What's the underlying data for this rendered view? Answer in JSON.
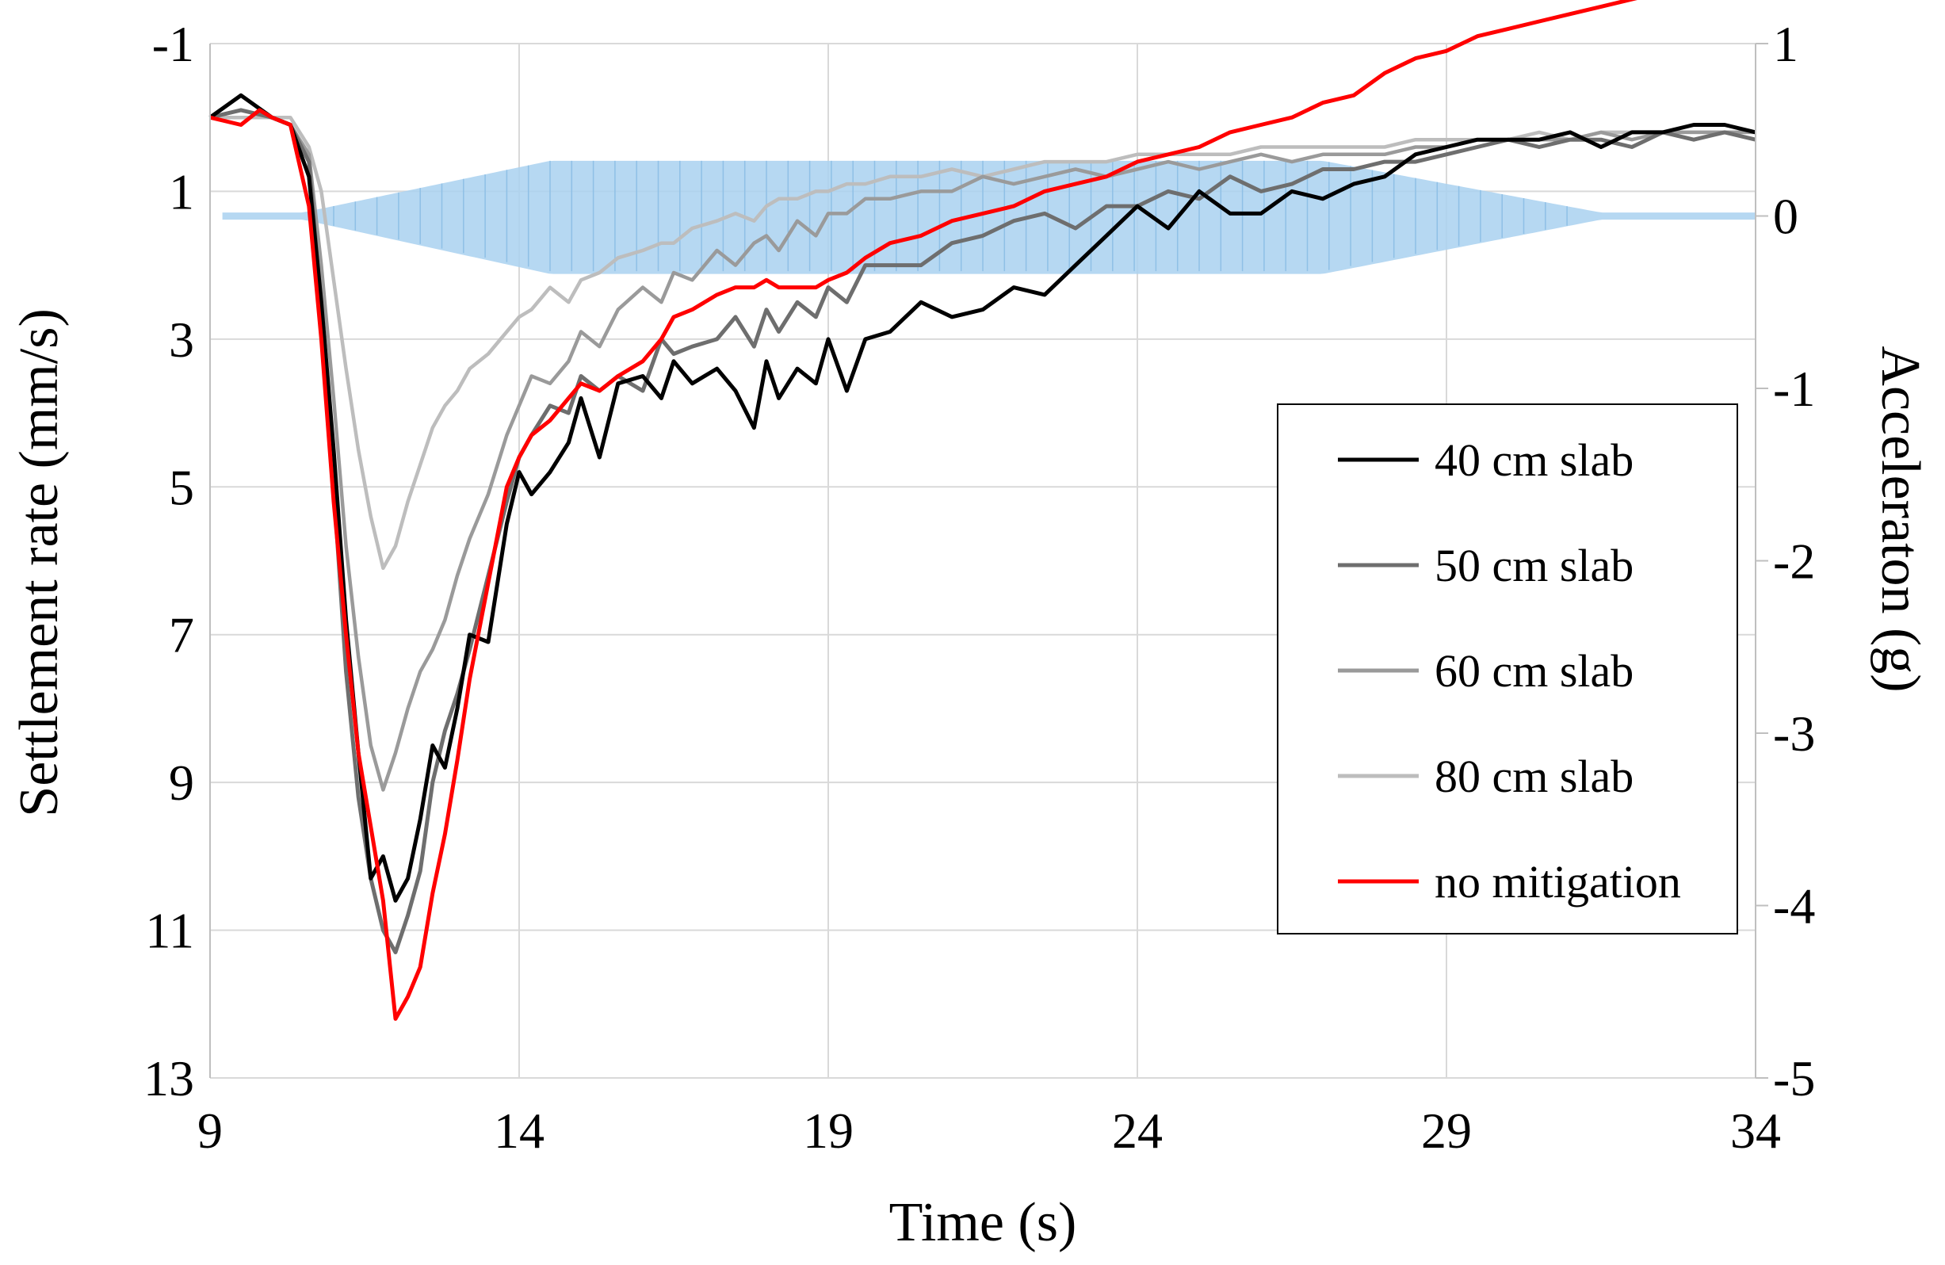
{
  "chart_data": {
    "type": "line",
    "xlabel": "Time (s)",
    "ylabel": "Settlement rate (mm/s)",
    "y2label": "Acceleraton (g)",
    "xlim": [
      9,
      34
    ],
    "ylim": [
      -1,
      13
    ],
    "y_inverted": true,
    "y2lim": [
      -5,
      1
    ],
    "x_ticks": [
      9,
      14,
      19,
      24,
      29,
      34
    ],
    "y_ticks": [
      -1,
      1,
      3,
      5,
      7,
      9,
      11,
      13
    ],
    "y2_ticks": [
      1,
      0,
      -1,
      -2,
      -3,
      -4,
      -5
    ],
    "grid": true,
    "legend_position": "right",
    "colors": {
      "acceleration": "#a9d1f0",
      "s40": "#000000",
      "s50": "#6e6e6e",
      "s60": "#9a9a9a",
      "s80": "#bdbdbd",
      "nomit": "#ff0000"
    },
    "series": [
      {
        "name": "40 cm slab",
        "key": "s40",
        "x": [
          9,
          9.5,
          10,
          10.3,
          10.6,
          10.8,
          11,
          11.2,
          11.4,
          11.6,
          11.8,
          12,
          12.2,
          12.4,
          12.6,
          12.8,
          13,
          13.2,
          13.5,
          13.8,
          14,
          14.2,
          14.5,
          14.8,
          15,
          15.3,
          15.6,
          16,
          16.3,
          16.5,
          16.8,
          17.2,
          17.5,
          17.8,
          18,
          18.2,
          18.5,
          18.8,
          19,
          19.3,
          19.6,
          20,
          20.5,
          21,
          21.5,
          22,
          22.5,
          23,
          23.5,
          24,
          24.5,
          25,
          25.5,
          26,
          26.5,
          27,
          27.5,
          28,
          28.5,
          29,
          29.5,
          30,
          30.5,
          31,
          31.5,
          32,
          32.5,
          33,
          33.5,
          34
        ],
        "y": [
          0,
          -0.3,
          0,
          0.1,
          0.8,
          2.5,
          4.5,
          6.8,
          8.6,
          10.3,
          10,
          10.6,
          10.3,
          9.5,
          8.5,
          8.8,
          8,
          7,
          7.1,
          5.5,
          4.8,
          5.1,
          4.8,
          4.4,
          3.8,
          4.6,
          3.6,
          3.5,
          3.8,
          3.3,
          3.6,
          3.4,
          3.7,
          4.2,
          3.3,
          3.8,
          3.4,
          3.6,
          3.0,
          3.7,
          3.0,
          2.9,
          2.5,
          2.7,
          2.6,
          2.3,
          2.4,
          2.0,
          1.6,
          1.2,
          1.5,
          1.0,
          1.3,
          1.3,
          1.0,
          1.1,
          0.9,
          0.8,
          0.5,
          0.4,
          0.3,
          0.3,
          0.3,
          0.2,
          0.4,
          0.2,
          0.2,
          0.1,
          0.1,
          0.2
        ]
      },
      {
        "name": "50 cm slab",
        "key": "s50",
        "x": [
          9,
          9.5,
          10,
          10.3,
          10.6,
          10.8,
          11,
          11.2,
          11.4,
          11.6,
          11.8,
          12,
          12.2,
          12.4,
          12.6,
          12.8,
          13,
          13.2,
          13.5,
          13.8,
          14,
          14.2,
          14.5,
          14.8,
          15,
          15.3,
          15.6,
          16,
          16.3,
          16.5,
          16.8,
          17.2,
          17.5,
          17.8,
          18,
          18.2,
          18.5,
          18.8,
          19,
          19.3,
          19.6,
          20,
          20.5,
          21,
          21.5,
          22,
          22.5,
          23,
          23.5,
          24,
          24.5,
          25,
          25.5,
          26,
          26.5,
          27,
          27.5,
          28,
          28.5,
          29,
          29.5,
          30,
          30.5,
          31,
          31.5,
          32,
          32.5,
          33,
          33.5,
          34
        ],
        "y": [
          0,
          -0.1,
          0,
          0.1,
          0.6,
          2.6,
          5,
          7.5,
          9.2,
          10.3,
          11.0,
          11.3,
          10.8,
          10.2,
          9.0,
          8.3,
          7.8,
          7.2,
          6.2,
          5.2,
          4.6,
          4.3,
          3.9,
          4.0,
          3.5,
          3.7,
          3.5,
          3.7,
          3.0,
          3.2,
          3.1,
          3.0,
          2.7,
          3.1,
          2.6,
          2.9,
          2.5,
          2.7,
          2.3,
          2.5,
          2.0,
          2.0,
          2.0,
          1.7,
          1.6,
          1.4,
          1.3,
          1.5,
          1.2,
          1.2,
          1.0,
          1.1,
          0.8,
          1.0,
          0.9,
          0.7,
          0.7,
          0.6,
          0.6,
          0.5,
          0.4,
          0.3,
          0.4,
          0.3,
          0.3,
          0.4,
          0.2,
          0.3,
          0.2,
          0.3
        ]
      },
      {
        "name": "60 cm slab",
        "key": "s60",
        "x": [
          9,
          9.5,
          10,
          10.3,
          10.6,
          10.8,
          11,
          11.2,
          11.4,
          11.6,
          11.8,
          12,
          12.2,
          12.4,
          12.6,
          12.8,
          13,
          13.2,
          13.5,
          13.8,
          14,
          14.2,
          14.5,
          14.8,
          15,
          15.3,
          15.6,
          16,
          16.3,
          16.5,
          16.8,
          17.2,
          17.5,
          17.8,
          18,
          18.2,
          18.5,
          18.8,
          19,
          19.3,
          19.6,
          20,
          20.5,
          21,
          21.5,
          22,
          22.5,
          23,
          23.5,
          24,
          24.5,
          25,
          25.5,
          26,
          26.5,
          27,
          27.5,
          28,
          28.5,
          29,
          29.5,
          30,
          30.5,
          31,
          31.5,
          32,
          32.5,
          33,
          33.5,
          34
        ],
        "y": [
          0,
          -0.1,
          0,
          0.1,
          0.5,
          2.0,
          3.8,
          5.8,
          7.3,
          8.5,
          9.1,
          8.6,
          8.0,
          7.5,
          7.2,
          6.8,
          6.2,
          5.7,
          5.1,
          4.3,
          3.9,
          3.5,
          3.6,
          3.3,
          2.9,
          3.1,
          2.6,
          2.3,
          2.5,
          2.1,
          2.2,
          1.8,
          2.0,
          1.7,
          1.6,
          1.8,
          1.4,
          1.6,
          1.3,
          1.3,
          1.1,
          1.1,
          1.0,
          1.0,
          0.8,
          0.9,
          0.8,
          0.7,
          0.8,
          0.7,
          0.6,
          0.7,
          0.6,
          0.5,
          0.6,
          0.5,
          0.5,
          0.5,
          0.4,
          0.4,
          0.3,
          0.3,
          0.3,
          0.3,
          0.2,
          0.3,
          0.2,
          0.2,
          0.2,
          0.2
        ]
      },
      {
        "name": "80 cm slab",
        "key": "s80",
        "x": [
          9,
          9.5,
          10,
          10.3,
          10.6,
          10.8,
          11,
          11.2,
          11.4,
          11.6,
          11.8,
          12,
          12.2,
          12.4,
          12.6,
          12.8,
          13,
          13.2,
          13.5,
          13.8,
          14,
          14.2,
          14.5,
          14.8,
          15,
          15.3,
          15.6,
          16,
          16.3,
          16.5,
          16.8,
          17.2,
          17.5,
          17.8,
          18,
          18.2,
          18.5,
          18.8,
          19,
          19.3,
          19.6,
          20,
          20.5,
          21,
          21.5,
          22,
          22.5,
          23,
          23.5,
          24,
          24.5,
          25,
          25.5,
          26,
          26.5,
          27,
          27.5,
          28,
          28.5,
          29,
          29.5,
          30,
          30.5,
          31,
          31.5,
          32,
          32.5,
          33,
          33.5,
          34
        ],
        "y": [
          0,
          0,
          0,
          0,
          0.4,
          1.0,
          2.2,
          3.4,
          4.5,
          5.4,
          6.1,
          5.8,
          5.2,
          4.7,
          4.2,
          3.9,
          3.7,
          3.4,
          3.2,
          2.9,
          2.7,
          2.6,
          2.3,
          2.5,
          2.2,
          2.1,
          1.9,
          1.8,
          1.7,
          1.7,
          1.5,
          1.4,
          1.3,
          1.4,
          1.2,
          1.1,
          1.1,
          1.0,
          1.0,
          0.9,
          0.9,
          0.8,
          0.8,
          0.7,
          0.8,
          0.7,
          0.6,
          0.6,
          0.6,
          0.5,
          0.5,
          0.5,
          0.5,
          0.4,
          0.4,
          0.4,
          0.4,
          0.4,
          0.3,
          0.3,
          0.3,
          0.3,
          0.2,
          0.3,
          0.2,
          0.2,
          0.2,
          0.2,
          0.2,
          0.2
        ]
      },
      {
        "name": "no mitigation",
        "key": "nomit",
        "x": [
          9,
          9.5,
          9.8,
          10,
          10.3,
          10.6,
          10.8,
          11,
          11.2,
          11.4,
          11.6,
          11.8,
          12,
          12.2,
          12.4,
          12.6,
          12.8,
          13,
          13.2,
          13.5,
          13.8,
          14,
          14.2,
          14.5,
          14.8,
          15,
          15.3,
          15.6,
          16,
          16.3,
          16.5,
          16.8,
          17.2,
          17.5,
          17.8,
          18,
          18.2,
          18.5,
          18.8,
          19,
          19.3,
          19.6,
          20,
          20.5,
          21,
          21.5,
          22,
          22.5,
          23,
          23.5,
          24,
          24.5,
          25,
          25.5,
          26,
          26.5,
          27,
          27.5,
          28,
          28.5,
          29,
          29.5,
          30,
          30.5,
          31,
          31.5,
          32,
          32.5,
          33,
          33.5,
          34
        ],
        "y": [
          0,
          0.1,
          -0.1,
          0,
          0.1,
          1.2,
          3.0,
          5.2,
          7.0,
          8.6,
          9.6,
          10.6,
          12.2,
          11.9,
          11.5,
          10.5,
          9.7,
          8.7,
          7.6,
          6.3,
          5.0,
          4.6,
          4.3,
          4.1,
          3.8,
          3.6,
          3.7,
          3.5,
          3.3,
          3.0,
          2.7,
          2.6,
          2.4,
          2.3,
          2.3,
          2.2,
          2.3,
          2.3,
          2.3,
          2.2,
          2.1,
          1.9,
          1.7,
          1.6,
          1.4,
          1.3,
          1.2,
          1.0,
          0.9,
          0.8,
          0.6,
          0.5,
          0.4,
          0.2,
          0.1,
          0.0,
          -0.2,
          -0.3,
          -0.6,
          -0.8,
          -0.9,
          -1.1,
          -1.2,
          -1.3,
          -1.4,
          -1.5,
          -1.6,
          -1.7,
          -1.7,
          -1.8,
          -1.8
        ]
      }
    ]
  },
  "legend": {
    "items": [
      {
        "label": "40 cm slab",
        "key": "s40"
      },
      {
        "label": "50 cm slab",
        "key": "s50"
      },
      {
        "label": "60 cm slab",
        "key": "s60"
      },
      {
        "label": "80 cm slab",
        "key": "s80"
      },
      {
        "label": "no mitigation",
        "key": "nomit"
      }
    ]
  }
}
